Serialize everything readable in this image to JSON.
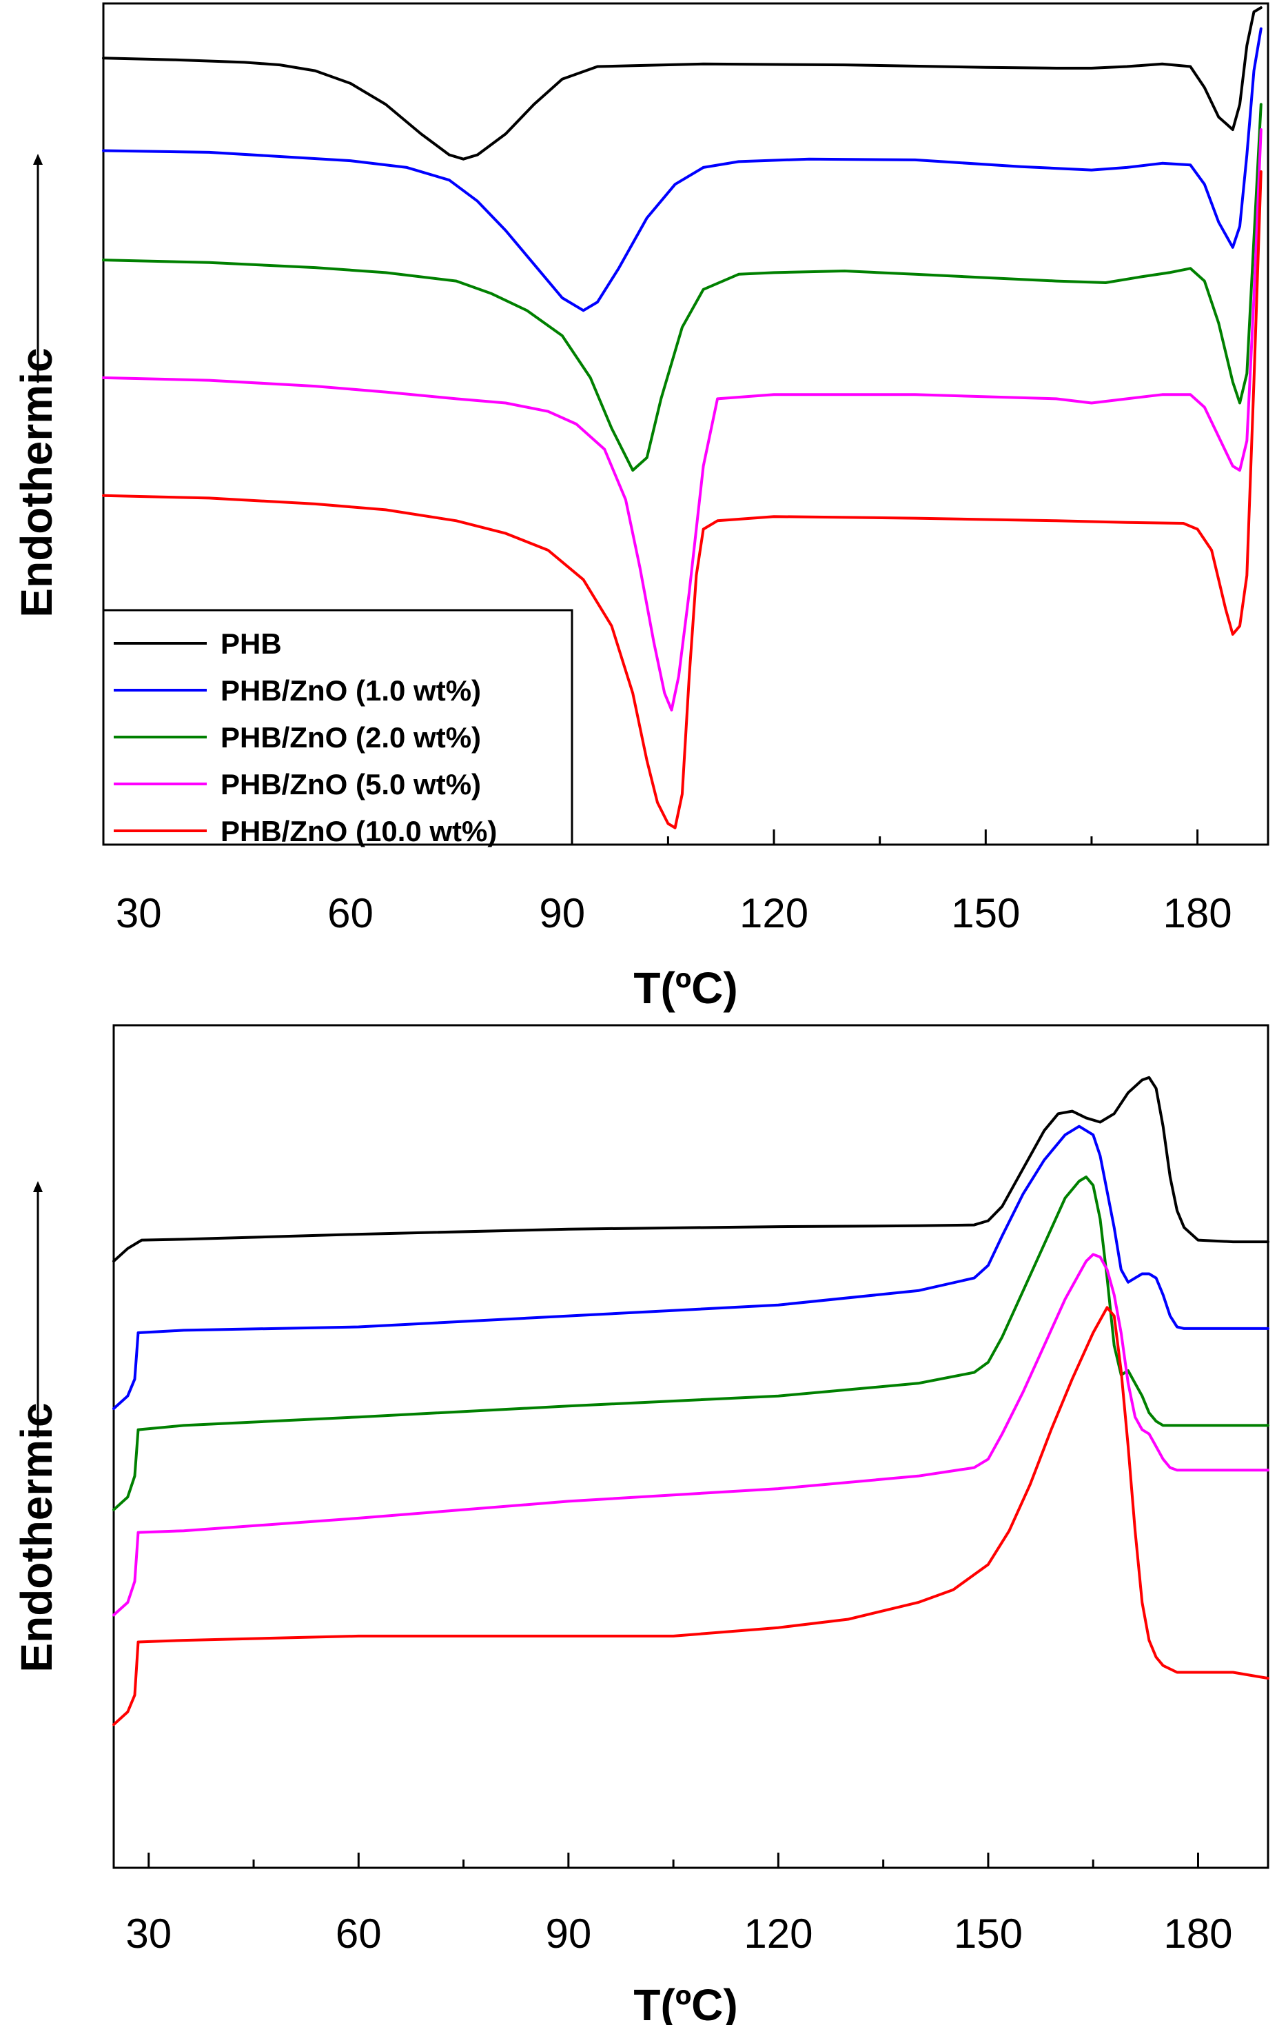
{
  "chart_data": [
    {
      "type": "line",
      "title": "",
      "xlabel": "T(ºC)",
      "ylabel": "Endothermic",
      "xlim": [
        25,
        190
      ],
      "xticks": [
        30,
        60,
        90,
        120,
        150,
        180
      ],
      "ylim": [
        0,
        100
      ],
      "legend": "bottom-left",
      "grid": false,
      "series": [
        {
          "name": "PHB",
          "color": "#000000",
          "x": [
            25,
            35,
            45,
            50,
            55,
            60,
            65,
            70,
            74,
            76,
            78,
            82,
            86,
            90,
            95,
            100,
            110,
            130,
            150,
            160,
            165,
            170,
            175,
            179,
            181,
            183,
            185,
            186,
            187,
            188,
            189
          ],
          "y": [
            93.5,
            93.3,
            93.0,
            92.7,
            92.0,
            90.5,
            88.0,
            84.5,
            82.0,
            81.5,
            82.0,
            84.5,
            88.0,
            91.0,
            92.5,
            92.6,
            92.8,
            92.7,
            92.4,
            92.3,
            92.3,
            92.5,
            92.8,
            92.5,
            90.0,
            86.5,
            85.0,
            88.0,
            95.0,
            99.0,
            99.5
          ]
        },
        {
          "name": "PHB/ZnO (1.0 wt%)",
          "color": "#0000ff",
          "x": [
            25,
            40,
            50,
            60,
            68,
            74,
            78,
            82,
            86,
            90,
            93,
            95,
            98,
            102,
            106,
            110,
            115,
            125,
            140,
            155,
            165,
            170,
            175,
            179,
            181,
            183,
            185,
            186,
            187,
            188,
            189
          ],
          "y": [
            82.5,
            82.3,
            81.8,
            81.3,
            80.5,
            79.0,
            76.5,
            73.0,
            69.0,
            65.0,
            63.5,
            64.5,
            68.5,
            74.5,
            78.5,
            80.5,
            81.2,
            81.5,
            81.4,
            80.6,
            80.2,
            80.5,
            81.0,
            80.8,
            78.5,
            74.0,
            71.0,
            73.5,
            82.0,
            92.0,
            97.0
          ]
        },
        {
          "name": "PHB/ZnO (2.0 wt%)",
          "color": "#008000",
          "x": [
            25,
            40,
            55,
            65,
            75,
            80,
            85,
            90,
            94,
            97,
            100,
            102,
            104,
            107,
            110,
            115,
            120,
            130,
            140,
            150,
            160,
            167,
            172,
            176,
            179,
            181,
            183,
            185,
            186,
            187,
            188,
            189
          ],
          "y": [
            69.5,
            69.2,
            68.6,
            68.0,
            67.0,
            65.5,
            63.5,
            60.5,
            55.5,
            49.5,
            44.5,
            46.0,
            53.0,
            61.5,
            66.0,
            67.8,
            68.0,
            68.2,
            67.8,
            67.4,
            67.0,
            66.8,
            67.5,
            68.0,
            68.5,
            67.0,
            62.0,
            55.0,
            52.5,
            56.0,
            72.0,
            88.0
          ]
        },
        {
          "name": "PHB/ZnO (5.0 wt%)",
          "color": "#ff00ff",
          "x": [
            25,
            40,
            55,
            65,
            75,
            82,
            88,
            92,
            96,
            99,
            101,
            103,
            104.5,
            105.5,
            106.5,
            108,
            110,
            112,
            120,
            140,
            160,
            165,
            170,
            175,
            179,
            181,
            183,
            185,
            186,
            187,
            188,
            189
          ],
          "y": [
            55.5,
            55.2,
            54.5,
            53.8,
            53.0,
            52.5,
            51.5,
            50.0,
            47.0,
            41.0,
            33.0,
            24.0,
            18.0,
            16.0,
            20.0,
            30.0,
            45.0,
            53.0,
            53.5,
            53.5,
            53.0,
            52.5,
            53.0,
            53.5,
            53.5,
            52.0,
            48.5,
            45.0,
            44.5,
            48.0,
            65.0,
            85.0
          ]
        },
        {
          "name": "PHB/ZnO (10.0 wt%)",
          "color": "#ff0000",
          "x": [
            25,
            40,
            55,
            65,
            75,
            82,
            88,
            93,
            97,
            100,
            102,
            103.5,
            105,
            106,
            107,
            108,
            109,
            110,
            112,
            120,
            140,
            160,
            170,
            178,
            180,
            182,
            184,
            185,
            186,
            187,
            188,
            189
          ],
          "y": [
            41.5,
            41.2,
            40.5,
            39.8,
            38.5,
            37.0,
            35.0,
            31.5,
            26.0,
            18.0,
            10.0,
            5.0,
            2.5,
            2.0,
            6.0,
            20.0,
            32.0,
            37.5,
            38.5,
            39.0,
            38.8,
            38.5,
            38.3,
            38.2,
            37.5,
            35.0,
            28.0,
            25.0,
            26.0,
            32.0,
            55.0,
            80.0
          ]
        }
      ]
    },
    {
      "type": "line",
      "title": "",
      "xlabel": "T(ºC)",
      "ylabel": "Endothermic",
      "xlim": [
        25,
        190
      ],
      "xticks": [
        30,
        60,
        90,
        120,
        150,
        180
      ],
      "ylim": [
        0,
        100
      ],
      "legend": "none",
      "grid": false,
      "series": [
        {
          "name": "PHB",
          "color": "#000000",
          "x": [
            25,
            27,
            29,
            35,
            60,
            90,
            120,
            140,
            148,
            150,
            152,
            155,
            158,
            160,
            162,
            164,
            166,
            168,
            170,
            172,
            173,
            174,
            175,
            176,
            177,
            178,
            180,
            185,
            190
          ],
          "y": [
            72.0,
            73.5,
            74.5,
            74.6,
            75.2,
            75.8,
            76.1,
            76.2,
            76.3,
            76.8,
            78.5,
            83.0,
            87.5,
            89.5,
            89.8,
            89.0,
            88.5,
            89.5,
            92.0,
            93.5,
            93.8,
            92.5,
            88.0,
            82.0,
            78.0,
            76.0,
            74.5,
            74.3,
            74.3
          ]
        },
        {
          "name": "PHB/ZnO (1.0 wt%)",
          "color": "#0000ff",
          "x": [
            25,
            27,
            28,
            28.5,
            35,
            60,
            90,
            120,
            140,
            148,
            150,
            152,
            155,
            158,
            161,
            163,
            165,
            166,
            168,
            169,
            170,
            171,
            172,
            173,
            174,
            175,
            176,
            177,
            178,
            185,
            190
          ],
          "y": [
            54.5,
            56.0,
            58.0,
            63.5,
            63.8,
            64.2,
            65.5,
            66.8,
            68.5,
            70.0,
            71.5,
            75.0,
            80.0,
            84.0,
            87.0,
            88.0,
            87.0,
            84.5,
            76.0,
            71.0,
            69.5,
            70.0,
            70.5,
            70.5,
            70.0,
            68.0,
            65.5,
            64.2,
            64.0,
            64.0,
            64.0
          ]
        },
        {
          "name": "PHB/ZnO (2.0 wt%)",
          "color": "#008000",
          "x": [
            25,
            27,
            28,
            28.5,
            35,
            60,
            90,
            120,
            140,
            148,
            150,
            152,
            155,
            158,
            161,
            163,
            164,
            165,
            166,
            167,
            168,
            169,
            170,
            171,
            172,
            173,
            174,
            175,
            176,
            185,
            190
          ],
          "y": [
            42.5,
            44.0,
            46.5,
            52.0,
            52.5,
            53.5,
            54.8,
            56.0,
            57.5,
            58.8,
            60.0,
            63.0,
            68.5,
            74.0,
            79.5,
            81.5,
            82.0,
            81.0,
            77.0,
            70.0,
            62.0,
            58.5,
            59.0,
            57.5,
            56.0,
            54.0,
            53.0,
            52.5,
            52.5,
            52.5,
            52.5
          ]
        },
        {
          "name": "PHB/ZnO (5.0 wt%)",
          "color": "#ff00ff",
          "x": [
            25,
            27,
            28,
            28.5,
            35,
            60,
            90,
            120,
            140,
            148,
            150,
            152,
            155,
            158,
            161,
            163,
            164,
            165,
            166,
            167,
            168,
            169,
            170,
            171,
            172,
            173,
            174,
            175,
            176,
            177,
            185,
            190
          ],
          "y": [
            30.0,
            31.5,
            34.0,
            39.8,
            40.0,
            41.5,
            43.5,
            45.0,
            46.5,
            47.5,
            48.5,
            51.5,
            56.5,
            62.0,
            67.5,
            70.5,
            72.0,
            72.8,
            72.5,
            71.0,
            68.0,
            63.5,
            57.5,
            53.5,
            52.0,
            51.5,
            50.0,
            48.5,
            47.5,
            47.2,
            47.2,
            47.2
          ]
        },
        {
          "name": "PHB/ZnO (10.0 wt%)",
          "color": "#ff0000",
          "x": [
            25,
            27,
            28,
            28.5,
            35,
            60,
            90,
            105,
            120,
            130,
            140,
            145,
            150,
            153,
            156,
            159,
            162,
            165,
            167,
            168,
            169,
            170,
            171,
            172,
            173,
            174,
            175,
            177,
            180,
            185,
            190
          ],
          "y": [
            17.0,
            18.5,
            20.5,
            26.8,
            27.0,
            27.5,
            27.5,
            27.5,
            28.5,
            29.5,
            31.5,
            33.0,
            36.0,
            40.0,
            45.5,
            52.0,
            58.0,
            63.5,
            66.5,
            65.5,
            59.0,
            50.0,
            40.0,
            31.5,
            27.0,
            25.0,
            24.0,
            23.2,
            23.2,
            23.2,
            22.5
          ]
        }
      ]
    }
  ]
}
